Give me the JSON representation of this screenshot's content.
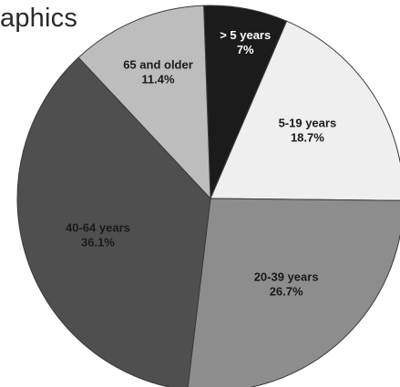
{
  "chart_data": {
    "type": "pie",
    "title": "aphics",
    "slices": [
      {
        "category": "> 5 years",
        "label": "7%",
        "value": 7,
        "color": "#1b1b1b",
        "text_color": "#ffffff"
      },
      {
        "category": "5-19 years",
        "label": "18.7%",
        "value": 18.7,
        "color": "#efefef",
        "text_color": "#1a1a1a"
      },
      {
        "category": "20-39 years",
        "label": "26.7%",
        "value": 26.7,
        "color": "#8d8d8d",
        "text_color": "#1a1a1a"
      },
      {
        "category": "40-64 years",
        "label": "36.1%",
        "value": 36.1,
        "color": "#4f4f4f",
        "text_color": "#1a1a1a"
      },
      {
        "category": "65 and older",
        "label": "11.4%",
        "value": 11.4,
        "color": "#bdbdbd",
        "text_color": "#1a1a1a"
      }
    ]
  }
}
